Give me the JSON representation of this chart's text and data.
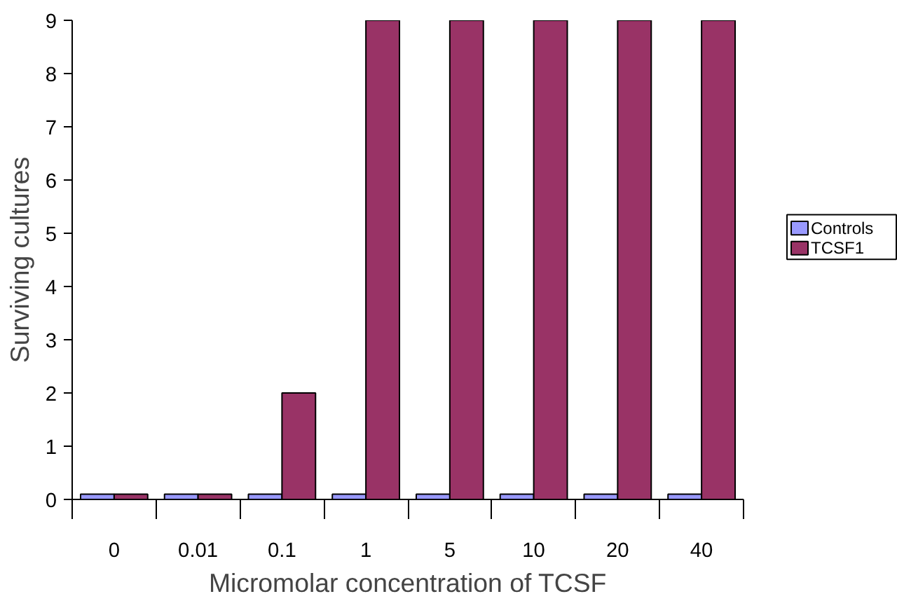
{
  "chart_data": {
    "type": "bar",
    "xlabel": "Micromolar concentration of TCSF",
    "ylabel": "Surviving cultures",
    "categories": [
      "0",
      "0.01",
      "0.1",
      "1",
      "5",
      "10",
      "20",
      "40"
    ],
    "series": [
      {
        "name": "Controls",
        "color": "#9999ff",
        "values": [
          0.1,
          0.1,
          0.1,
          0.1,
          0.1,
          0.1,
          0.1,
          0.1
        ]
      },
      {
        "name": "TCSF1",
        "color": "#993366",
        "values": [
          0.1,
          0.1,
          2,
          9,
          9,
          9,
          9,
          9
        ]
      }
    ],
    "ylim": [
      0,
      9
    ],
    "yticks": [
      0,
      1,
      2,
      3,
      4,
      5,
      6,
      7,
      8,
      9
    ],
    "grid": false,
    "legend": "right"
  }
}
